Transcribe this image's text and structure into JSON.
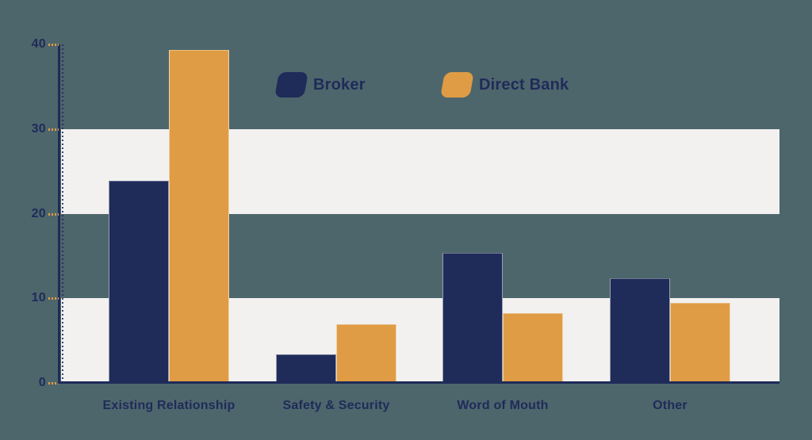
{
  "chart_data": {
    "type": "bar",
    "title": "",
    "xlabel": "",
    "ylabel": "",
    "categories": [
      "Existing Relationship",
      "Safety & Security",
      "Word of Mouth",
      "Other"
    ],
    "series": [
      {
        "name": "Broker",
        "color": "#1F2B59",
        "values": [
          23.9,
          3.4,
          15.4,
          12.4
        ]
      },
      {
        "name": "Direct Bank",
        "color": "#E09C44",
        "values": [
          39.3,
          6.9,
          8.2,
          9.5
        ]
      }
    ],
    "ylim": [
      0,
      40
    ],
    "yticks": [
      0,
      10,
      20,
      30,
      40
    ],
    "legend_position": "top-center",
    "grid_bands": [
      [
        20,
        30
      ],
      [
        0,
        10
      ]
    ],
    "background_color": "#4D666C",
    "band_color": "#F2F1EF",
    "axis_color": "#1F2B59",
    "tick_color": "#E09C44"
  }
}
